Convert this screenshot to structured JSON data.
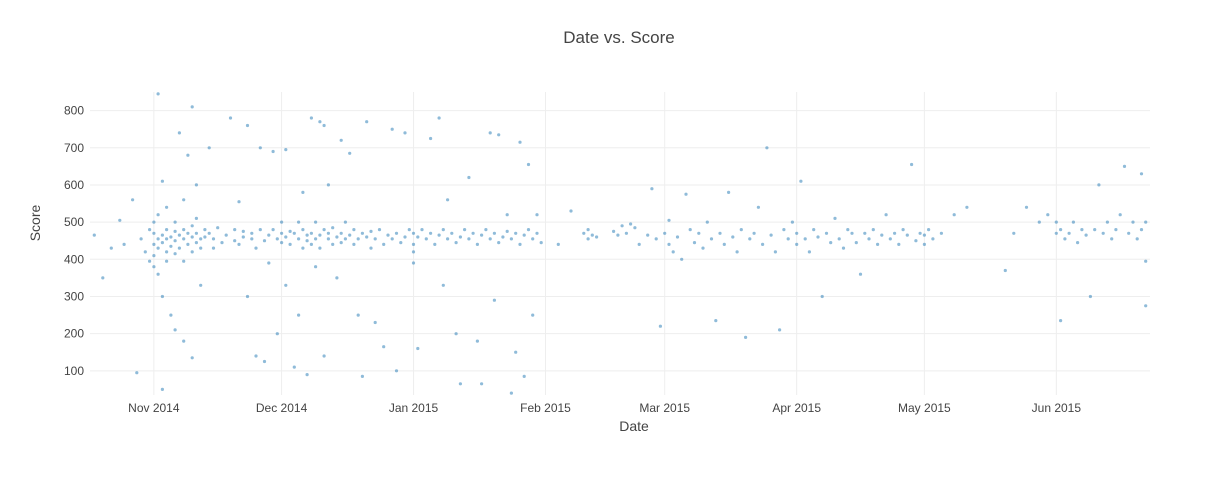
{
  "chart_data": {
    "type": "scatter",
    "title": "Date vs. Score",
    "xlabel": "Date",
    "ylabel": "Score",
    "x_range": [
      "2014-10-17",
      "2015-06-23"
    ],
    "ylim": [
      35,
      850
    ],
    "x_ticks": [
      {
        "date": "2014-11-01",
        "label": "Nov 2014"
      },
      {
        "date": "2014-12-01",
        "label": "Dec 2014"
      },
      {
        "date": "2015-01-01",
        "label": "Jan 2015"
      },
      {
        "date": "2015-02-01",
        "label": "Feb 2015"
      },
      {
        "date": "2015-03-01",
        "label": "Mar 2015"
      },
      {
        "date": "2015-04-01",
        "label": "Apr 2015"
      },
      {
        "date": "2015-05-01",
        "label": "May 2015"
      },
      {
        "date": "2015-06-01",
        "label": "Jun 2015"
      }
    ],
    "y_ticks": [
      100,
      200,
      300,
      400,
      500,
      600,
      700,
      800
    ],
    "grid": true,
    "legend": "none",
    "marker_color": "#1f77b4",
    "points": [
      [
        "2014-10-18",
        465
      ],
      [
        "2014-10-20",
        350
      ],
      [
        "2014-10-22",
        430
      ],
      [
        "2014-10-24",
        505
      ],
      [
        "2014-10-25",
        440
      ],
      [
        "2014-10-27",
        560
      ],
      [
        "2014-10-28",
        95
      ],
      [
        "2014-10-29",
        455
      ],
      [
        "2014-10-30",
        420
      ],
      [
        "2014-10-31",
        480
      ],
      [
        "2014-10-31",
        395
      ],
      [
        "2014-11-01",
        470
      ],
      [
        "2014-11-01",
        440
      ],
      [
        "2014-11-01",
        410
      ],
      [
        "2014-11-01",
        500
      ],
      [
        "2014-11-01",
        380
      ],
      [
        "2014-11-02",
        455
      ],
      [
        "2014-11-02",
        845
      ],
      [
        "2014-11-02",
        520
      ],
      [
        "2014-11-02",
        430
      ],
      [
        "2014-11-02",
        360
      ],
      [
        "2014-11-03",
        465
      ],
      [
        "2014-11-03",
        445
      ],
      [
        "2014-11-03",
        610
      ],
      [
        "2014-11-03",
        300
      ],
      [
        "2014-11-03",
        50
      ],
      [
        "2014-11-04",
        480
      ],
      [
        "2014-11-04",
        455
      ],
      [
        "2014-11-04",
        420
      ],
      [
        "2014-11-04",
        395
      ],
      [
        "2014-11-04",
        540
      ],
      [
        "2014-11-05",
        460
      ],
      [
        "2014-11-05",
        435
      ],
      [
        "2014-11-05",
        250
      ],
      [
        "2014-11-06",
        475
      ],
      [
        "2014-11-06",
        450
      ],
      [
        "2014-11-06",
        500
      ],
      [
        "2014-11-06",
        415
      ],
      [
        "2014-11-06",
        210
      ],
      [
        "2014-11-07",
        465
      ],
      [
        "2014-11-07",
        430
      ],
      [
        "2014-11-07",
        740
      ],
      [
        "2014-11-08",
        480
      ],
      [
        "2014-11-08",
        455
      ],
      [
        "2014-11-08",
        395
      ],
      [
        "2014-11-08",
        560
      ],
      [
        "2014-11-08",
        180
      ],
      [
        "2014-11-09",
        470
      ],
      [
        "2014-11-09",
        440
      ],
      [
        "2014-11-09",
        680
      ],
      [
        "2014-11-10",
        490
      ],
      [
        "2014-11-10",
        460
      ],
      [
        "2014-11-10",
        420
      ],
      [
        "2014-11-10",
        810
      ],
      [
        "2014-11-10",
        135
      ],
      [
        "2014-11-11",
        470
      ],
      [
        "2014-11-11",
        445
      ],
      [
        "2014-11-11",
        510
      ],
      [
        "2014-11-11",
        600
      ],
      [
        "2014-11-12",
        455
      ],
      [
        "2014-11-12",
        430
      ],
      [
        "2014-11-12",
        330
      ],
      [
        "2014-11-13",
        480
      ],
      [
        "2014-11-13",
        460
      ],
      [
        "2014-11-14",
        470
      ],
      [
        "2014-11-14",
        700
      ],
      [
        "2014-11-15",
        455
      ],
      [
        "2014-11-15",
        430
      ],
      [
        "2014-11-16",
        485
      ],
      [
        "2014-11-17",
        445
      ],
      [
        "2014-11-18",
        465
      ],
      [
        "2014-11-19",
        780
      ],
      [
        "2014-11-20",
        450
      ],
      [
        "2014-11-20",
        480
      ],
      [
        "2014-11-21",
        440
      ],
      [
        "2014-11-21",
        555
      ],
      [
        "2014-11-22",
        460
      ],
      [
        "2014-11-22",
        475
      ],
      [
        "2014-11-23",
        760
      ],
      [
        "2014-11-23",
        300
      ],
      [
        "2014-11-24",
        455
      ],
      [
        "2014-11-24",
        470
      ],
      [
        "2014-11-25",
        430
      ],
      [
        "2014-11-25",
        140
      ],
      [
        "2014-11-26",
        480
      ],
      [
        "2014-11-26",
        700
      ],
      [
        "2014-11-27",
        450
      ],
      [
        "2014-11-27",
        125
      ],
      [
        "2014-11-28",
        465
      ],
      [
        "2014-11-28",
        390
      ],
      [
        "2014-11-29",
        690
      ],
      [
        "2014-11-29",
        480
      ],
      [
        "2014-11-30",
        455
      ],
      [
        "2014-11-30",
        200
      ],
      [
        "2014-12-01",
        470
      ],
      [
        "2014-12-01",
        445
      ],
      [
        "2014-12-01",
        500
      ],
      [
        "2014-12-02",
        695
      ],
      [
        "2014-12-02",
        460
      ],
      [
        "2014-12-02",
        330
      ],
      [
        "2014-12-03",
        475
      ],
      [
        "2014-12-03",
        440
      ],
      [
        "2014-12-04",
        470
      ],
      [
        "2014-12-04",
        110
      ],
      [
        "2014-12-05",
        455
      ],
      [
        "2014-12-05",
        500
      ],
      [
        "2014-12-05",
        250
      ],
      [
        "2014-12-06",
        480
      ],
      [
        "2014-12-06",
        430
      ],
      [
        "2014-12-06",
        580
      ],
      [
        "2014-12-07",
        465
      ],
      [
        "2014-12-07",
        450
      ],
      [
        "2014-12-07",
        90
      ],
      [
        "2014-12-08",
        780
      ],
      [
        "2014-12-08",
        470
      ],
      [
        "2014-12-08",
        440
      ],
      [
        "2014-12-09",
        455
      ],
      [
        "2014-12-09",
        500
      ],
      [
        "2014-12-09",
        380
      ],
      [
        "2014-12-10",
        770
      ],
      [
        "2014-12-10",
        465
      ],
      [
        "2014-12-10",
        430
      ],
      [
        "2014-12-11",
        760
      ],
      [
        "2014-12-11",
        480
      ],
      [
        "2014-12-11",
        140
      ],
      [
        "2014-12-12",
        455
      ],
      [
        "2014-12-12",
        470
      ],
      [
        "2014-12-12",
        600
      ],
      [
        "2014-12-13",
        440
      ],
      [
        "2014-12-13",
        485
      ],
      [
        "2014-12-14",
        460
      ],
      [
        "2014-12-14",
        350
      ],
      [
        "2014-12-15",
        470
      ],
      [
        "2014-12-15",
        445
      ],
      [
        "2014-12-15",
        720
      ],
      [
        "2014-12-16",
        455
      ],
      [
        "2014-12-16",
        500
      ],
      [
        "2014-12-17",
        685
      ],
      [
        "2014-12-17",
        465
      ],
      [
        "2014-12-18",
        440
      ],
      [
        "2014-12-18",
        480
      ],
      [
        "2014-12-19",
        455
      ],
      [
        "2014-12-19",
        250
      ],
      [
        "2014-12-20",
        470
      ],
      [
        "2014-12-20",
        85
      ],
      [
        "2014-12-21",
        770
      ],
      [
        "2014-12-21",
        460
      ],
      [
        "2014-12-22",
        475
      ],
      [
        "2014-12-22",
        430
      ],
      [
        "2014-12-23",
        455
      ],
      [
        "2014-12-23",
        230
      ],
      [
        "2014-12-24",
        480
      ],
      [
        "2014-12-25",
        440
      ],
      [
        "2014-12-25",
        165
      ],
      [
        "2014-12-26",
        465
      ],
      [
        "2014-12-27",
        455
      ],
      [
        "2014-12-27",
        750
      ],
      [
        "2014-12-28",
        470
      ],
      [
        "2014-12-28",
        100
      ],
      [
        "2014-12-29",
        445
      ],
      [
        "2014-12-30",
        460
      ],
      [
        "2014-12-30",
        740
      ],
      [
        "2014-12-31",
        480
      ],
      [
        "2015-01-01",
        470
      ],
      [
        "2015-01-01",
        440
      ],
      [
        "2015-01-01",
        420
      ],
      [
        "2015-01-01",
        390
      ],
      [
        "2015-01-02",
        460
      ],
      [
        "2015-01-02",
        160
      ],
      [
        "2015-01-03",
        480
      ],
      [
        "2015-01-04",
        455
      ],
      [
        "2015-01-05",
        725
      ],
      [
        "2015-01-05",
        470
      ],
      [
        "2015-01-06",
        440
      ],
      [
        "2015-01-07",
        465
      ],
      [
        "2015-01-07",
        780
      ],
      [
        "2015-01-08",
        480
      ],
      [
        "2015-01-08",
        330
      ],
      [
        "2015-01-09",
        455
      ],
      [
        "2015-01-09",
        560
      ],
      [
        "2015-01-10",
        470
      ],
      [
        "2015-01-11",
        445
      ],
      [
        "2015-01-11",
        200
      ],
      [
        "2015-01-12",
        460
      ],
      [
        "2015-01-12",
        65
      ],
      [
        "2015-01-13",
        480
      ],
      [
        "2015-01-14",
        455
      ],
      [
        "2015-01-14",
        620
      ],
      [
        "2015-01-15",
        470
      ],
      [
        "2015-01-16",
        440
      ],
      [
        "2015-01-16",
        180
      ],
      [
        "2015-01-17",
        465
      ],
      [
        "2015-01-17",
        65
      ],
      [
        "2015-01-18",
        480
      ],
      [
        "2015-01-19",
        455
      ],
      [
        "2015-01-19",
        740
      ],
      [
        "2015-01-20",
        470
      ],
      [
        "2015-01-20",
        290
      ],
      [
        "2015-01-21",
        445
      ],
      [
        "2015-01-21",
        735
      ],
      [
        "2015-01-22",
        460
      ],
      [
        "2015-01-23",
        475
      ],
      [
        "2015-01-23",
        520
      ],
      [
        "2015-01-24",
        455
      ],
      [
        "2015-01-24",
        40
      ],
      [
        "2015-01-25",
        470
      ],
      [
        "2015-01-25",
        150
      ],
      [
        "2015-01-26",
        440
      ],
      [
        "2015-01-26",
        715
      ],
      [
        "2015-01-27",
        465
      ],
      [
        "2015-01-27",
        85
      ],
      [
        "2015-01-28",
        480
      ],
      [
        "2015-01-28",
        655
      ],
      [
        "2015-01-29",
        455
      ],
      [
        "2015-01-29",
        250
      ],
      [
        "2015-01-30",
        470
      ],
      [
        "2015-01-30",
        520
      ],
      [
        "2015-01-31",
        445
      ],
      [
        "2015-02-04",
        440
      ],
      [
        "2015-02-07",
        530
      ],
      [
        "2015-02-10",
        470
      ],
      [
        "2015-02-11",
        455
      ],
      [
        "2015-02-11",
        480
      ],
      [
        "2015-02-12",
        465
      ],
      [
        "2015-02-13",
        460
      ],
      [
        "2015-02-17",
        475
      ],
      [
        "2015-02-18",
        465
      ],
      [
        "2015-02-19",
        490
      ],
      [
        "2015-02-20",
        470
      ],
      [
        "2015-02-21",
        495
      ],
      [
        "2015-02-22",
        485
      ],
      [
        "2015-02-23",
        440
      ],
      [
        "2015-02-25",
        465
      ],
      [
        "2015-02-26",
        590
      ],
      [
        "2015-02-27",
        455
      ],
      [
        "2015-02-28",
        220
      ],
      [
        "2015-03-01",
        470
      ],
      [
        "2015-03-02",
        440
      ],
      [
        "2015-03-02",
        505
      ],
      [
        "2015-03-03",
        420
      ],
      [
        "2015-03-04",
        460
      ],
      [
        "2015-03-05",
        400
      ],
      [
        "2015-03-06",
        575
      ],
      [
        "2015-03-07",
        480
      ],
      [
        "2015-03-08",
        445
      ],
      [
        "2015-03-09",
        470
      ],
      [
        "2015-03-10",
        430
      ],
      [
        "2015-03-11",
        500
      ],
      [
        "2015-03-12",
        455
      ],
      [
        "2015-03-13",
        235
      ],
      [
        "2015-03-14",
        470
      ],
      [
        "2015-03-15",
        440
      ],
      [
        "2015-03-16",
        580
      ],
      [
        "2015-03-17",
        460
      ],
      [
        "2015-03-18",
        420
      ],
      [
        "2015-03-19",
        480
      ],
      [
        "2015-03-20",
        190
      ],
      [
        "2015-03-21",
        455
      ],
      [
        "2015-03-22",
        470
      ],
      [
        "2015-03-23",
        540
      ],
      [
        "2015-03-24",
        440
      ],
      [
        "2015-03-25",
        700
      ],
      [
        "2015-03-26",
        465
      ],
      [
        "2015-03-27",
        420
      ],
      [
        "2015-03-28",
        210
      ],
      [
        "2015-03-29",
        480
      ],
      [
        "2015-03-30",
        455
      ],
      [
        "2015-03-31",
        500
      ],
      [
        "2015-04-01",
        470
      ],
      [
        "2015-04-01",
        440
      ],
      [
        "2015-04-02",
        610
      ],
      [
        "2015-04-03",
        455
      ],
      [
        "2015-04-04",
        420
      ],
      [
        "2015-04-05",
        480
      ],
      [
        "2015-04-06",
        460
      ],
      [
        "2015-04-07",
        300
      ],
      [
        "2015-04-08",
        470
      ],
      [
        "2015-04-09",
        445
      ],
      [
        "2015-04-10",
        510
      ],
      [
        "2015-04-11",
        455
      ],
      [
        "2015-04-12",
        430
      ],
      [
        "2015-04-13",
        480
      ],
      [
        "2015-04-14",
        470
      ],
      [
        "2015-04-15",
        445
      ],
      [
        "2015-04-16",
        360
      ],
      [
        "2015-04-17",
        470
      ],
      [
        "2015-04-18",
        455
      ],
      [
        "2015-04-19",
        480
      ],
      [
        "2015-04-20",
        440
      ],
      [
        "2015-04-21",
        465
      ],
      [
        "2015-04-22",
        520
      ],
      [
        "2015-04-23",
        455
      ],
      [
        "2015-04-24",
        470
      ],
      [
        "2015-04-25",
        440
      ],
      [
        "2015-04-26",
        480
      ],
      [
        "2015-04-27",
        465
      ],
      [
        "2015-04-28",
        655
      ],
      [
        "2015-04-29",
        450
      ],
      [
        "2015-04-30",
        470
      ],
      [
        "2015-05-01",
        465
      ],
      [
        "2015-05-01",
        440
      ],
      [
        "2015-05-02",
        480
      ],
      [
        "2015-05-03",
        455
      ],
      [
        "2015-05-05",
        470
      ],
      [
        "2015-05-08",
        520
      ],
      [
        "2015-05-11",
        540
      ],
      [
        "2015-05-20",
        370
      ],
      [
        "2015-05-22",
        470
      ],
      [
        "2015-05-25",
        540
      ],
      [
        "2015-05-28",
        500
      ],
      [
        "2015-05-30",
        520
      ],
      [
        "2015-06-01",
        500
      ],
      [
        "2015-06-01",
        470
      ],
      [
        "2015-06-02",
        235
      ],
      [
        "2015-06-02",
        480
      ],
      [
        "2015-06-03",
        455
      ],
      [
        "2015-06-04",
        470
      ],
      [
        "2015-06-05",
        500
      ],
      [
        "2015-06-06",
        445
      ],
      [
        "2015-06-07",
        480
      ],
      [
        "2015-06-08",
        465
      ],
      [
        "2015-06-09",
        300
      ],
      [
        "2015-06-10",
        480
      ],
      [
        "2015-06-11",
        600
      ],
      [
        "2015-06-12",
        470
      ],
      [
        "2015-06-13",
        500
      ],
      [
        "2015-06-14",
        455
      ],
      [
        "2015-06-15",
        480
      ],
      [
        "2015-06-16",
        520
      ],
      [
        "2015-06-17",
        650
      ],
      [
        "2015-06-18",
        470
      ],
      [
        "2015-06-19",
        500
      ],
      [
        "2015-06-20",
        455
      ],
      [
        "2015-06-21",
        630
      ],
      [
        "2015-06-21",
        480
      ],
      [
        "2015-06-22",
        500
      ],
      [
        "2015-06-22",
        275
      ],
      [
        "2015-06-22",
        395
      ]
    ]
  }
}
